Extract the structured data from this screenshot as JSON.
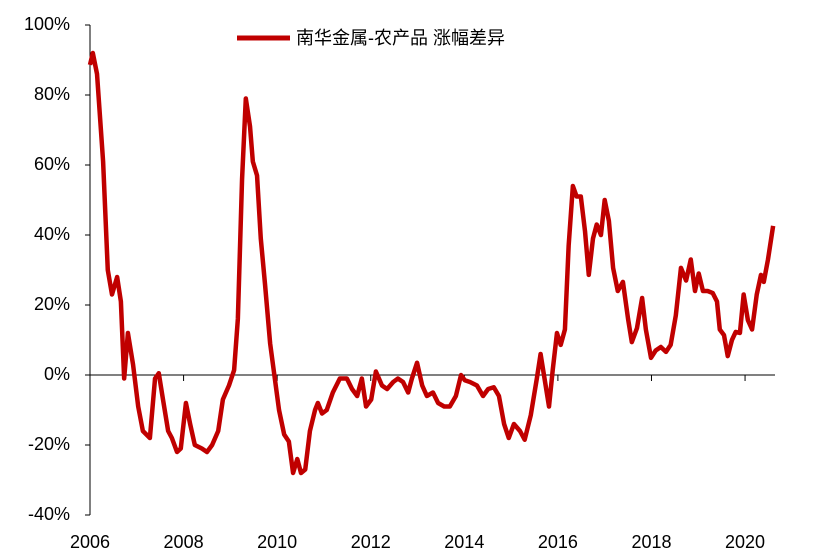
{
  "chart_data": {
    "type": "line",
    "series": [
      {
        "name": "南华金属-农产品 涨幅差异",
        "color": "#c00000",
        "x": [
          2006.0,
          2006.06,
          2006.15,
          2006.28,
          2006.38,
          2006.47,
          2006.58,
          2006.66,
          2006.73,
          2006.81,
          2006.92,
          2007.03,
          2007.13,
          2007.28,
          2007.39,
          2007.47,
          2007.56,
          2007.67,
          2007.75,
          2007.86,
          2007.94,
          2008.05,
          2008.14,
          2008.24,
          2008.39,
          2008.5,
          2008.61,
          2008.74,
          2008.84,
          2008.97,
          2009.08,
          2009.16,
          2009.25,
          2009.33,
          2009.42,
          2009.48,
          2009.57,
          2009.65,
          2009.74,
          2009.85,
          2009.93,
          2010.04,
          2010.15,
          2010.25,
          2010.34,
          2010.43,
          2010.51,
          2010.6,
          2010.7,
          2010.81,
          2010.87,
          2010.96,
          2011.06,
          2011.19,
          2011.34,
          2011.49,
          2011.6,
          2011.71,
          2011.81,
          2011.9,
          2012.01,
          2012.11,
          2012.24,
          2012.35,
          2012.48,
          2012.58,
          2012.69,
          2012.8,
          2012.88,
          2012.99,
          2013.1,
          2013.2,
          2013.33,
          2013.44,
          2013.57,
          2013.69,
          2013.82,
          2013.93,
          2014.01,
          2014.12,
          2014.27,
          2014.4,
          2014.51,
          2014.63,
          2014.74,
          2014.85,
          2014.95,
          2015.06,
          2015.19,
          2015.29,
          2015.42,
          2015.55,
          2015.63,
          2015.72,
          2015.81,
          2015.89,
          2015.98,
          2016.06,
          2016.15,
          2016.23,
          2016.32,
          2016.4,
          2016.49,
          2016.58,
          2016.66,
          2016.75,
          2016.83,
          2016.92,
          2017.0,
          2017.09,
          2017.18,
          2017.28,
          2017.39,
          2017.5,
          2017.58,
          2017.69,
          2017.8,
          2017.88,
          2017.99,
          2018.09,
          2018.2,
          2018.31,
          2018.41,
          2018.52,
          2018.63,
          2018.74,
          2018.84,
          2018.93,
          2019.01,
          2019.1,
          2019.2,
          2019.31,
          2019.4,
          2019.46,
          2019.55,
          2019.63,
          2019.72,
          2019.8,
          2019.89,
          2019.97,
          2020.06,
          2020.15,
          2020.25,
          2020.34,
          2020.4,
          2020.49,
          2020.6
        ],
        "values": [
          88.6,
          92,
          86,
          61,
          30,
          23,
          28,
          21,
          -1,
          12,
          3,
          -9,
          -16,
          -18,
          -1,
          0.5,
          -7,
          -16,
          -18,
          -22,
          -21,
          -8,
          -14,
          -20,
          -21,
          -22,
          -20,
          -16,
          -7,
          -3,
          1.4,
          16,
          56,
          79,
          71,
          61,
          57,
          39,
          26,
          9,
          1,
          -10,
          -17,
          -19,
          -28,
          -24,
          -28,
          -27,
          -16,
          -10,
          -8,
          -11,
          -10,
          -5,
          -1,
          -1,
          -4,
          -6,
          -1,
          -9,
          -7,
          1,
          -3,
          -4,
          -2,
          -1,
          -2,
          -5,
          -1,
          3.5,
          -3,
          -6,
          -5,
          -8,
          -9,
          -9,
          -6,
          0,
          -1.5,
          -2,
          -3,
          -6,
          -4,
          -3.5,
          -6,
          -14,
          -18,
          -14,
          -16,
          -18.5,
          -11.5,
          -1,
          6,
          -1.5,
          -9,
          1.5,
          12,
          8.6,
          13,
          37,
          54,
          51,
          51,
          41,
          28.6,
          39,
          43,
          40,
          50,
          44,
          30.6,
          24,
          26.6,
          16,
          9.4,
          13.4,
          22,
          13,
          4.9,
          7,
          8,
          6.6,
          8.6,
          17,
          30.6,
          27,
          33,
          24,
          29,
          24,
          24,
          23.4,
          21,
          13,
          11.4,
          5.4,
          10,
          12.3,
          12,
          23,
          15.7,
          13,
          23,
          28.6,
          26.6,
          33,
          42.6
        ]
      }
    ],
    "xlim": [
      2006,
      2020.64
    ],
    "xticks": [
      2006,
      2008,
      2010,
      2012,
      2014,
      2016,
      2018,
      2020
    ],
    "ylim": [
      -40,
      100
    ],
    "yticks": [
      {
        "value": -40,
        "label": "-40%"
      },
      {
        "value": -20,
        "label": "-20%"
      },
      {
        "value": 0,
        "label": "0%"
      },
      {
        "value": 20,
        "label": "20%"
      },
      {
        "value": 40,
        "label": "40%"
      },
      {
        "value": 60,
        "label": "60%"
      },
      {
        "value": 80,
        "label": "80%"
      },
      {
        "value": 100,
        "label": "100%"
      }
    ],
    "legend": "top"
  }
}
